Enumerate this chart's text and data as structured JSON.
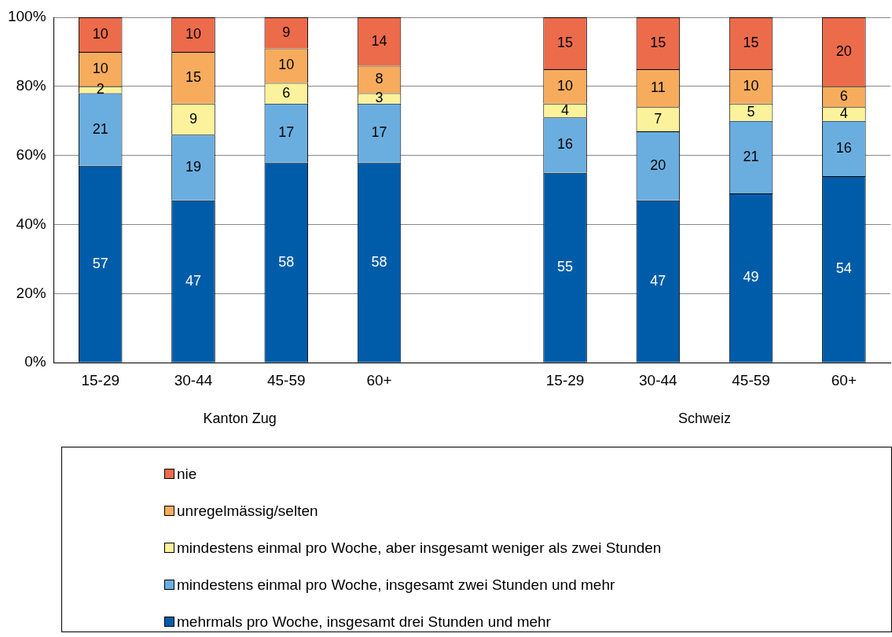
{
  "chart_data": {
    "type": "bar",
    "stacked": true,
    "categories": [
      "15-29",
      "30-44",
      "45-59",
      "60+",
      null,
      "15-29",
      "30-44",
      "45-59",
      "60+"
    ],
    "series": [
      {
        "name": "mehrmals pro Woche, insgesamt drei Stunden und mehr",
        "color": "#005ca9",
        "values": [
          57,
          47,
          58,
          58,
          null,
          55,
          47,
          49,
          54
        ]
      },
      {
        "name": "mindestens einmal pro Woche, insgesamt zwei Stunden und mehr",
        "color": "#6aaee0",
        "values": [
          21,
          19,
          17,
          17,
          null,
          16,
          20,
          21,
          16
        ]
      },
      {
        "name": "mindestens einmal pro Woche, aber insgesamt weniger als zwei Stunden",
        "color": "#fcf29b",
        "values": [
          2,
          9,
          6,
          3,
          null,
          4,
          7,
          5,
          4
        ]
      },
      {
        "name": "unregelmässig/selten",
        "color": "#f6ac5c",
        "values": [
          10,
          15,
          10,
          8,
          null,
          10,
          11,
          10,
          6
        ]
      },
      {
        "name": "nie",
        "color": "#ec6b4b",
        "values": [
          10,
          10,
          9,
          14,
          null,
          15,
          15,
          15,
          20
        ]
      }
    ],
    "ylim": [
      0,
      100
    ],
    "yticks": [
      {
        "value": 0,
        "label": "0%"
      },
      {
        "value": 20,
        "label": "20%"
      },
      {
        "value": 40,
        "label": "40%"
      },
      {
        "value": 60,
        "label": "60%"
      },
      {
        "value": 80,
        "label": "80%"
      },
      {
        "value": 100,
        "label": "100%"
      }
    ],
    "grid": "y",
    "data_labels": true,
    "legend": "bottom",
    "annotations": [
      "Kanton Zug",
      "Schweiz"
    ]
  }
}
